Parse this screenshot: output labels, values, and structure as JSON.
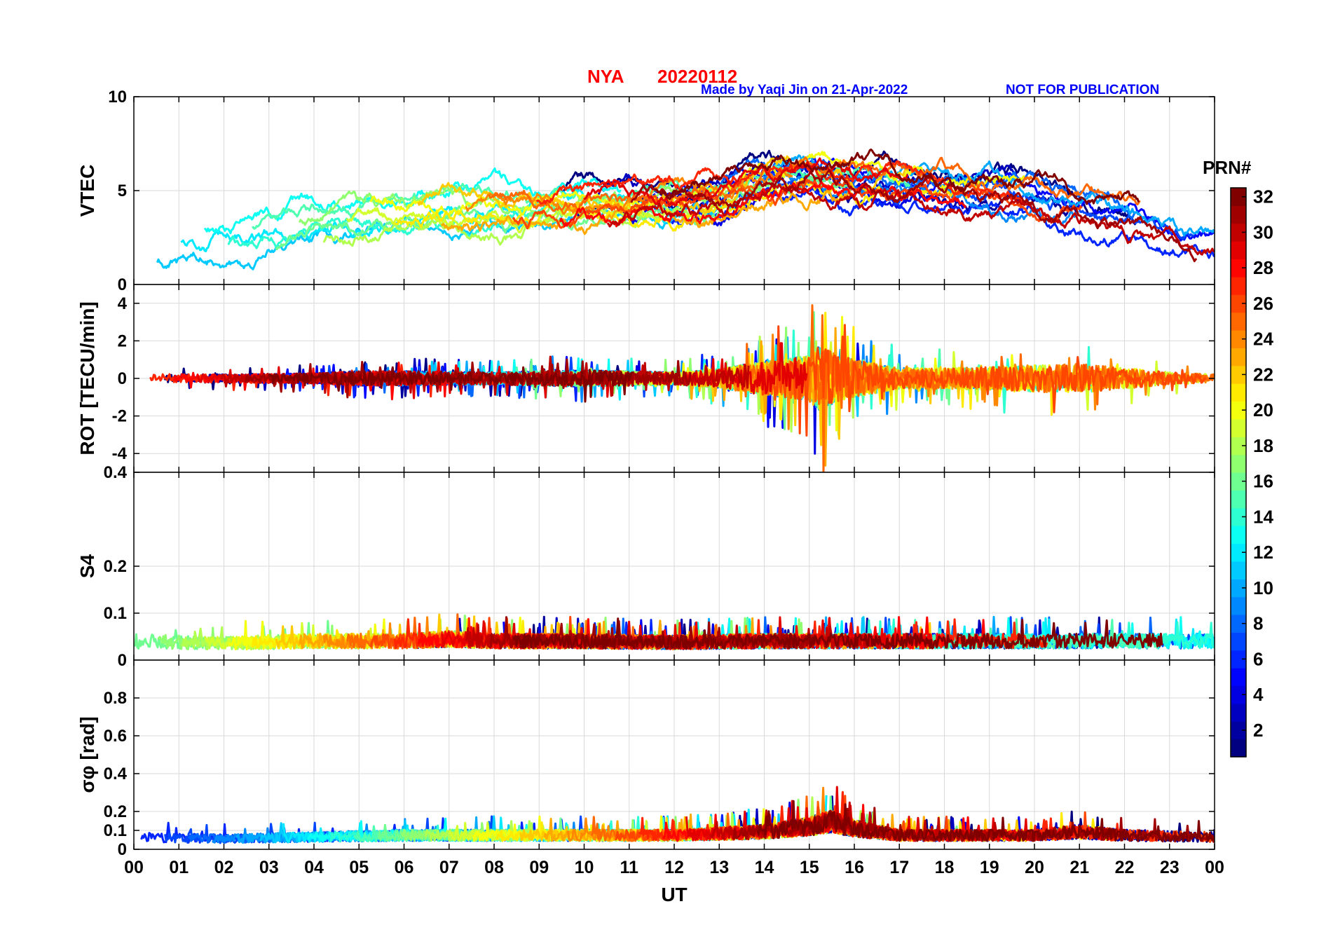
{
  "header": {
    "station": "NYA",
    "date": "20220112",
    "credit": "Made by Yaqi Jin on 21-Apr-2022",
    "notice": "NOT FOR PUBLICATION"
  },
  "colors": {
    "title": "#ff0000",
    "credit": "#0000ff",
    "grid": "#d9d9d9",
    "axis": "#000000"
  },
  "colorbar": {
    "label": "PRN#",
    "min": 1,
    "max": 32,
    "colormap": "jet",
    "ticks": [
      "2",
      "4",
      "6",
      "8",
      "10",
      "12",
      "14",
      "16",
      "18",
      "20",
      "22",
      "24",
      "26",
      "28",
      "30",
      "32"
    ]
  },
  "chart_data": [
    {
      "type": "line",
      "ylabel": "VTEC",
      "xlim": [
        0,
        24
      ],
      "ylim": [
        0,
        10
      ],
      "yticks": [
        "0",
        "5",
        "10"
      ],
      "grid": true,
      "series_count": 32,
      "envelope": {
        "x": [
          0,
          1,
          2,
          3,
          4,
          5,
          6,
          7,
          8,
          9,
          10,
          11,
          12,
          13,
          14,
          15,
          16,
          17,
          18,
          19,
          20,
          21,
          22,
          23,
          24
        ],
        "y": [
          2.0,
          2.1,
          2.2,
          2.6,
          3.2,
          3.6,
          3.9,
          4.0,
          3.9,
          3.9,
          4.2,
          4.3,
          4.3,
          4.5,
          5.5,
          5.8,
          5.4,
          5.3,
          5.1,
          4.9,
          4.6,
          4.2,
          3.6,
          2.9,
          2.4
        ]
      }
    },
    {
      "type": "line",
      "ylabel": "ROT [TECU/min]",
      "xlim": [
        0,
        24
      ],
      "ylim": [
        -5,
        5
      ],
      "yticks": [
        "-4",
        "-2",
        "0",
        "2",
        "4"
      ],
      "grid": true,
      "series_count": 32,
      "envelope": {
        "x": [
          0,
          2,
          4,
          5,
          6,
          8,
          10,
          12,
          13,
          13.5,
          14,
          15,
          15.3,
          15.5,
          16,
          17,
          18,
          19,
          20,
          21,
          22,
          23,
          24
        ],
        "y": [
          0.4,
          0.4,
          0.5,
          0.7,
          0.7,
          0.6,
          0.8,
          0.6,
          0.9,
          1.3,
          1.6,
          2.2,
          3.5,
          2.5,
          1.8,
          1.0,
          1.0,
          1.1,
          1.3,
          1.4,
          1.0,
          0.6,
          0.4
        ]
      }
    },
    {
      "type": "line",
      "ylabel": "S4",
      "xlim": [
        0,
        24
      ],
      "ylim": [
        0,
        0.4
      ],
      "yticks": [
        "0",
        "0.1",
        "0.2",
        "0.4"
      ],
      "grid": true,
      "series_count": 32,
      "envelope": {
        "x": [
          0,
          2,
          4,
          6,
          7,
          8,
          10,
          12,
          14,
          16,
          18,
          20,
          22,
          24
        ],
        "y": [
          0.045,
          0.04,
          0.045,
          0.045,
          0.05,
          0.045,
          0.045,
          0.042,
          0.045,
          0.045,
          0.045,
          0.045,
          0.045,
          0.045
        ]
      }
    },
    {
      "type": "line",
      "ylabel": "σφ [rad]",
      "xlim": [
        0,
        24
      ],
      "ylim": [
        0,
        1
      ],
      "yticks": [
        "0",
        "0.1",
        "0.2",
        "0.4",
        "0.6",
        "0.8"
      ],
      "grid": true,
      "series_count": 32,
      "envelope": {
        "x": [
          0,
          2,
          4,
          6,
          8,
          10,
          12,
          13,
          14,
          15,
          15.5,
          16,
          17,
          18,
          20,
          21,
          22,
          24
        ],
        "y": [
          0.07,
          0.06,
          0.07,
          0.08,
          0.08,
          0.08,
          0.08,
          0.09,
          0.1,
          0.13,
          0.16,
          0.12,
          0.08,
          0.08,
          0.08,
          0.1,
          0.08,
          0.07
        ]
      }
    }
  ],
  "xaxis": {
    "label": "UT",
    "ticks": [
      "00",
      "01",
      "02",
      "03",
      "04",
      "05",
      "06",
      "07",
      "08",
      "09",
      "10",
      "11",
      "12",
      "13",
      "14",
      "15",
      "16",
      "17",
      "18",
      "19",
      "20",
      "21",
      "22",
      "23",
      "00"
    ]
  }
}
